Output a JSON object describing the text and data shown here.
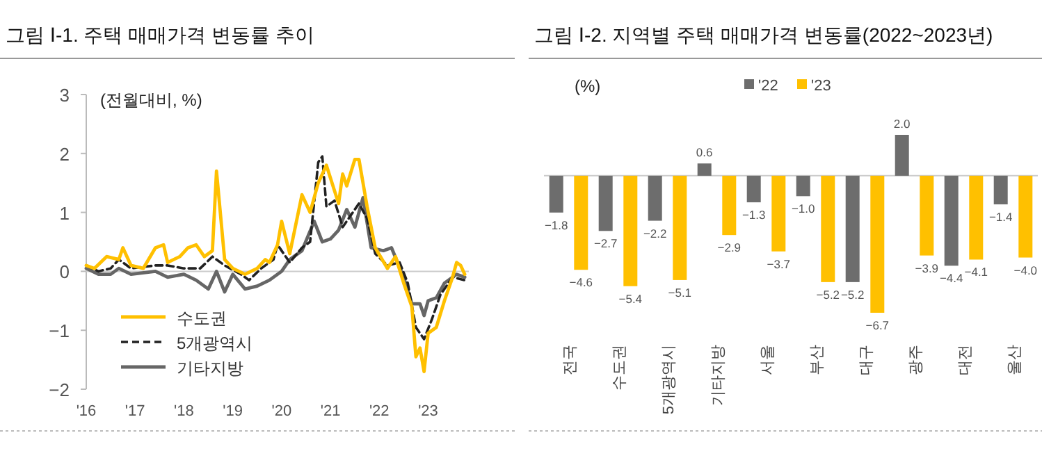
{
  "chart_data": [
    {
      "type": "line",
      "title": "그림 Ⅰ-1. 주택 매매가격 변동률 추이",
      "annotations": [
        "(전월대비, %)"
      ],
      "legend": "bottom left",
      "xlim": [
        "2016-01",
        "2023-11"
      ],
      "xticks": [
        {
          "value": "2016-01",
          "label": "'16"
        },
        {
          "value": "2017-01",
          "label": "'17"
        },
        {
          "value": "2018-01",
          "label": "'18"
        },
        {
          "value": "2019-01",
          "label": "'19"
        },
        {
          "value": "2020-01",
          "label": "'20"
        },
        {
          "value": "2021-01",
          "label": "'21"
        },
        {
          "value": "2022-01",
          "label": "'22"
        },
        {
          "value": "2023-01",
          "label": "'23"
        }
      ],
      "ylim": [
        -2,
        3
      ],
      "yticks": [
        {
          "value": -2,
          "label": "−2"
        },
        {
          "value": -1,
          "label": "−1"
        },
        0,
        1,
        2,
        3
      ],
      "series": [
        {
          "name": "수도권",
          "color": "#ffc000",
          "line_style": "solid",
          "x": [
            "2016-01",
            "2016-03",
            "2016-06",
            "2016-09",
            "2016-10",
            "2016-12",
            "2017-03",
            "2017-06",
            "2017-08",
            "2017-09",
            "2017-12",
            "2018-02",
            "2018-04",
            "2018-06",
            "2018-08",
            "2018-09",
            "2018-11",
            "2019-01",
            "2019-04",
            "2019-07",
            "2019-09",
            "2019-10",
            "2019-12",
            "2020-01",
            "2020-03",
            "2020-06",
            "2020-08",
            "2020-10",
            "2020-12",
            "2021-03",
            "2021-04",
            "2021-05",
            "2021-07",
            "2021-08",
            "2021-10",
            "2021-12",
            "2022-03",
            "2022-05",
            "2022-07",
            "2022-09",
            "2022-10",
            "2022-11",
            "2022-12",
            "2023-01",
            "2023-03",
            "2023-05",
            "2023-07",
            "2023-08",
            "2023-09",
            "2023-10"
          ],
          "values": [
            0.1,
            0.05,
            0.25,
            0.2,
            0.4,
            0.1,
            0.05,
            0.4,
            0.45,
            0.15,
            0.25,
            0.4,
            0.45,
            0.25,
            0.35,
            1.7,
            0.2,
            0.05,
            -0.05,
            0.05,
            0.2,
            0.15,
            0.45,
            0.85,
            0.3,
            1.3,
            1.0,
            1.5,
            1.8,
            1.15,
            1.65,
            1.45,
            1.9,
            1.9,
            1.1,
            0.4,
            0.05,
            0.25,
            -0.2,
            -0.6,
            -1.45,
            -1.3,
            -1.7,
            -1.05,
            -0.95,
            -0.5,
            -0.1,
            0.15,
            0.1,
            -0.05
          ]
        },
        {
          "name": "5개광역시",
          "color": "#222222",
          "line_style": "dashed",
          "x": [
            "2016-01",
            "2016-04",
            "2016-07",
            "2016-09",
            "2016-12",
            "2017-06",
            "2017-09",
            "2018-01",
            "2018-05",
            "2018-08",
            "2018-11",
            "2019-03",
            "2019-05",
            "2019-08",
            "2019-11",
            "2019-12",
            "2020-03",
            "2020-06",
            "2020-08",
            "2020-10",
            "2020-11",
            "2020-12",
            "2021-02",
            "2021-04",
            "2021-06",
            "2021-08",
            "2021-10",
            "2021-12",
            "2022-03",
            "2022-06",
            "2022-08",
            "2022-10",
            "2022-12",
            "2023-02",
            "2023-04",
            "2023-07",
            "2023-10"
          ],
          "values": [
            0.1,
            0.0,
            0.05,
            0.2,
            0.05,
            0.1,
            0.1,
            0.05,
            0.05,
            0.25,
            0.1,
            -0.05,
            -0.15,
            0.05,
            0.2,
            0.45,
            0.15,
            0.4,
            0.5,
            1.85,
            1.95,
            1.1,
            1.2,
            0.75,
            0.95,
            1.15,
            0.9,
            0.3,
            0.1,
            0.15,
            -0.2,
            -0.95,
            -1.15,
            -0.8,
            -0.4,
            -0.1,
            -0.15
          ]
        },
        {
          "name": "기타지방",
          "color": "#666666",
          "line_style": "solid",
          "x": [
            "2016-01",
            "2016-04",
            "2016-07",
            "2016-09",
            "2016-12",
            "2017-06",
            "2017-09",
            "2018-01",
            "2018-04",
            "2018-07",
            "2018-09",
            "2018-11",
            "2019-01",
            "2019-04",
            "2019-07",
            "2019-10",
            "2020-01",
            "2020-03",
            "2020-06",
            "2020-09",
            "2020-11",
            "2021-01",
            "2021-03",
            "2021-05",
            "2021-07",
            "2021-09",
            "2021-11",
            "2022-02",
            "2022-04",
            "2022-07",
            "2022-09",
            "2022-11",
            "2022-12",
            "2023-01",
            "2023-03",
            "2023-05",
            "2023-08",
            "2023-10"
          ],
          "values": [
            0.05,
            -0.05,
            -0.05,
            0.05,
            -0.05,
            0.0,
            -0.1,
            -0.05,
            -0.15,
            -0.3,
            0.0,
            -0.35,
            -0.05,
            -0.3,
            -0.25,
            -0.15,
            0.0,
            0.2,
            0.35,
            0.85,
            0.5,
            0.55,
            0.7,
            1.05,
            0.75,
            1.25,
            0.4,
            0.35,
            0.4,
            -0.1,
            -0.55,
            -0.55,
            -0.75,
            -0.5,
            -0.45,
            -0.2,
            -0.05,
            -0.1
          ]
        }
      ]
    },
    {
      "type": "bar",
      "title": "그림 Ⅰ-2. 지역별 주택 매매가격 변동률(2022~2023년)",
      "annotations": [
        "(%)"
      ],
      "legend": "top",
      "categories": [
        "전국",
        "수도권",
        "5개광역시",
        "기타지방",
        "서울",
        "부산",
        "대구",
        "광주",
        "대전",
        "울산"
      ],
      "series": [
        {
          "name": "'22",
          "color": "#6d6d6d",
          "values": [
            -1.8,
            -2.7,
            -2.2,
            0.6,
            -1.3,
            -1.0,
            -5.2,
            2.0,
            -4.4,
            -1.4
          ],
          "value_labels": [
            "−1.8",
            "−2.7",
            "−2.2",
            "0.6",
            "−1.3",
            "−1.0",
            "−5.2",
            "2.0",
            "−4.4",
            "−1.4"
          ]
        },
        {
          "name": "'23",
          "color": "#ffc000",
          "values": [
            -4.6,
            -5.4,
            -5.1,
            -2.9,
            -3.7,
            -5.2,
            -6.7,
            -3.9,
            -4.1,
            -4.0
          ],
          "value_labels": [
            "−4.6",
            "−5.4",
            "−5.1",
            "−2.9",
            "−3.7",
            "−5.2",
            "−6.7",
            "−3.9",
            "−4.1",
            "−4.0"
          ]
        }
      ]
    }
  ]
}
